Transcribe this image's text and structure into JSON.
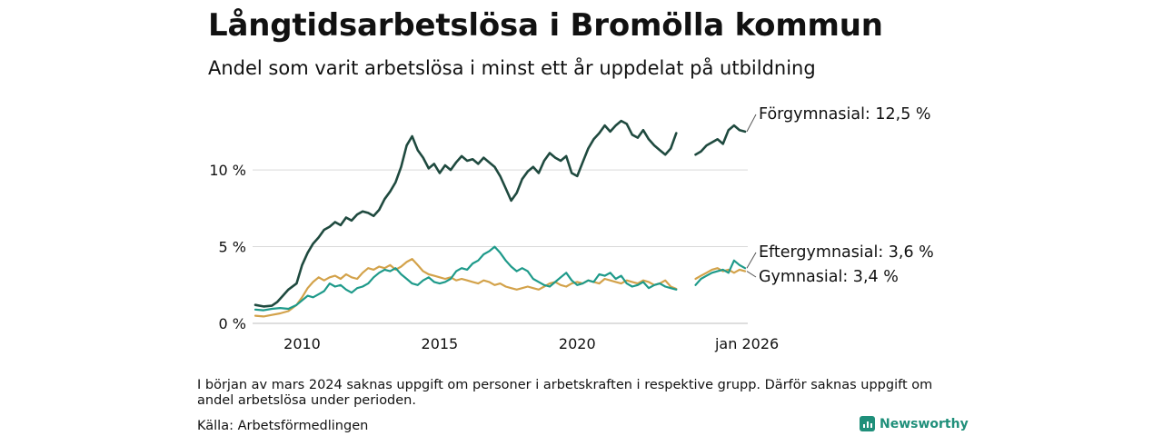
{
  "header": {
    "title": "Långtidsarbetslösa i Bromölla kommun",
    "subtitle": "Andel som varit arbetslösa i minst ett år uppdelat på utbildning"
  },
  "footer": {
    "note": "I början av mars 2024 saknas uppgift om personer i arbetskraften i respektive grupp. Därför saknas uppgift om andel arbetslösa under perioden.",
    "source": "Källa: Arbetsförmedlingen",
    "brand": "Newsworthy"
  },
  "colors": {
    "forgymnasial": "#1f4a3f",
    "eftergymnasial": "#1e9a8a",
    "gymnasial": "#d3a24a",
    "grid": "#d9d9d9",
    "brand": "#1f8f7a"
  },
  "chart_data": {
    "type": "line",
    "title": "Långtidsarbetslösa i Bromölla kommun",
    "subtitle": "Andel som varit arbetslösa i minst ett år uppdelat på utbildning",
    "xlabel": "",
    "ylabel": "",
    "xlim": [
      2008.2,
      2026.2
    ],
    "ylim": [
      0,
      13.5
    ],
    "yticks": [
      {
        "value": 0,
        "label": "0 %"
      },
      {
        "value": 5,
        "label": "5 %"
      },
      {
        "value": 10,
        "label": "10 %"
      }
    ],
    "xticks": [
      {
        "value": 2010,
        "label": "2010"
      },
      {
        "value": 2015,
        "label": "2015"
      },
      {
        "value": 2020,
        "label": "2020"
      },
      {
        "value": 2026.17,
        "label": "jan 2026"
      }
    ],
    "grid": true,
    "gap": [
      2023.8,
      2024.2
    ],
    "series": [
      {
        "name": "Förgymnasial",
        "label": "Förgymnasial: 12,5 %",
        "color_key": "forgymnasial",
        "points": [
          [
            2008.3,
            1.2
          ],
          [
            2008.6,
            1.1
          ],
          [
            2008.9,
            1.15
          ],
          [
            2009.1,
            1.4
          ],
          [
            2009.3,
            1.8
          ],
          [
            2009.5,
            2.2
          ],
          [
            2009.8,
            2.6
          ],
          [
            2010.0,
            3.8
          ],
          [
            2010.2,
            4.6
          ],
          [
            2010.4,
            5.2
          ],
          [
            2010.6,
            5.6
          ],
          [
            2010.8,
            6.1
          ],
          [
            2011.0,
            6.3
          ],
          [
            2011.2,
            6.6
          ],
          [
            2011.4,
            6.4
          ],
          [
            2011.6,
            6.9
          ],
          [
            2011.8,
            6.7
          ],
          [
            2012.0,
            7.1
          ],
          [
            2012.2,
            7.3
          ],
          [
            2012.4,
            7.2
          ],
          [
            2012.6,
            7.0
          ],
          [
            2012.8,
            7.4
          ],
          [
            2013.0,
            8.1
          ],
          [
            2013.2,
            8.6
          ],
          [
            2013.4,
            9.2
          ],
          [
            2013.6,
            10.2
          ],
          [
            2013.8,
            11.6
          ],
          [
            2014.0,
            12.2
          ],
          [
            2014.2,
            11.3
          ],
          [
            2014.4,
            10.8
          ],
          [
            2014.6,
            10.1
          ],
          [
            2014.8,
            10.4
          ],
          [
            2015.0,
            9.8
          ],
          [
            2015.2,
            10.3
          ],
          [
            2015.4,
            10.0
          ],
          [
            2015.6,
            10.5
          ],
          [
            2015.8,
            10.9
          ],
          [
            2016.0,
            10.6
          ],
          [
            2016.2,
            10.7
          ],
          [
            2016.4,
            10.4
          ],
          [
            2016.6,
            10.8
          ],
          [
            2016.8,
            10.5
          ],
          [
            2017.0,
            10.2
          ],
          [
            2017.2,
            9.6
          ],
          [
            2017.4,
            8.8
          ],
          [
            2017.6,
            8.0
          ],
          [
            2017.8,
            8.5
          ],
          [
            2018.0,
            9.4
          ],
          [
            2018.2,
            9.9
          ],
          [
            2018.4,
            10.2
          ],
          [
            2018.6,
            9.8
          ],
          [
            2018.8,
            10.6
          ],
          [
            2019.0,
            11.1
          ],
          [
            2019.2,
            10.8
          ],
          [
            2019.4,
            10.6
          ],
          [
            2019.6,
            10.9
          ],
          [
            2019.8,
            9.8
          ],
          [
            2020.0,
            9.6
          ],
          [
            2020.2,
            10.5
          ],
          [
            2020.4,
            11.4
          ],
          [
            2020.6,
            12.0
          ],
          [
            2020.8,
            12.4
          ],
          [
            2021.0,
            12.9
          ],
          [
            2021.2,
            12.5
          ],
          [
            2021.4,
            12.9
          ],
          [
            2021.6,
            13.2
          ],
          [
            2021.8,
            13.0
          ],
          [
            2022.0,
            12.3
          ],
          [
            2022.2,
            12.1
          ],
          [
            2022.4,
            12.6
          ],
          [
            2022.6,
            12.0
          ],
          [
            2022.8,
            11.6
          ],
          [
            2023.0,
            11.3
          ],
          [
            2023.2,
            11.0
          ],
          [
            2023.4,
            11.4
          ],
          [
            2023.6,
            12.4
          ],
          [
            2024.3,
            11.0
          ],
          [
            2024.5,
            11.2
          ],
          [
            2024.7,
            11.6
          ],
          [
            2024.9,
            11.8
          ],
          [
            2025.1,
            12.0
          ],
          [
            2025.3,
            11.7
          ],
          [
            2025.5,
            12.6
          ],
          [
            2025.7,
            12.9
          ],
          [
            2025.9,
            12.6
          ],
          [
            2026.1,
            12.5
          ]
        ]
      },
      {
        "name": "Eftergymnasial",
        "label": "Eftergymnasial:  3,6 %",
        "color_key": "eftergymnasial",
        "points": [
          [
            2008.3,
            0.9
          ],
          [
            2008.6,
            0.85
          ],
          [
            2008.9,
            0.95
          ],
          [
            2009.2,
            1.0
          ],
          [
            2009.5,
            0.95
          ],
          [
            2009.8,
            1.2
          ],
          [
            2010.0,
            1.5
          ],
          [
            2010.2,
            1.8
          ],
          [
            2010.4,
            1.7
          ],
          [
            2010.6,
            1.9
          ],
          [
            2010.8,
            2.1
          ],
          [
            2011.0,
            2.6
          ],
          [
            2011.2,
            2.4
          ],
          [
            2011.4,
            2.5
          ],
          [
            2011.6,
            2.2
          ],
          [
            2011.8,
            2.0
          ],
          [
            2012.0,
            2.3
          ],
          [
            2012.2,
            2.4
          ],
          [
            2012.4,
            2.6
          ],
          [
            2012.6,
            3.0
          ],
          [
            2012.8,
            3.3
          ],
          [
            2013.0,
            3.5
          ],
          [
            2013.2,
            3.4
          ],
          [
            2013.4,
            3.6
          ],
          [
            2013.6,
            3.2
          ],
          [
            2013.8,
            2.9
          ],
          [
            2014.0,
            2.6
          ],
          [
            2014.2,
            2.5
          ],
          [
            2014.4,
            2.8
          ],
          [
            2014.6,
            3.0
          ],
          [
            2014.8,
            2.7
          ],
          [
            2015.0,
            2.6
          ],
          [
            2015.2,
            2.7
          ],
          [
            2015.4,
            2.9
          ],
          [
            2015.6,
            3.4
          ],
          [
            2015.8,
            3.6
          ],
          [
            2016.0,
            3.5
          ],
          [
            2016.2,
            3.9
          ],
          [
            2016.4,
            4.1
          ],
          [
            2016.6,
            4.5
          ],
          [
            2016.8,
            4.7
          ],
          [
            2017.0,
            5.0
          ],
          [
            2017.2,
            4.6
          ],
          [
            2017.4,
            4.1
          ],
          [
            2017.6,
            3.7
          ],
          [
            2017.8,
            3.4
          ],
          [
            2018.0,
            3.6
          ],
          [
            2018.2,
            3.4
          ],
          [
            2018.4,
            2.9
          ],
          [
            2018.6,
            2.7
          ],
          [
            2018.8,
            2.5
          ],
          [
            2019.0,
            2.4
          ],
          [
            2019.2,
            2.7
          ],
          [
            2019.4,
            3.0
          ],
          [
            2019.6,
            3.3
          ],
          [
            2019.8,
            2.8
          ],
          [
            2020.0,
            2.5
          ],
          [
            2020.2,
            2.6
          ],
          [
            2020.4,
            2.8
          ],
          [
            2020.6,
            2.7
          ],
          [
            2020.8,
            3.2
          ],
          [
            2021.0,
            3.1
          ],
          [
            2021.2,
            3.3
          ],
          [
            2021.4,
            2.9
          ],
          [
            2021.6,
            3.1
          ],
          [
            2021.8,
            2.6
          ],
          [
            2022.0,
            2.4
          ],
          [
            2022.2,
            2.5
          ],
          [
            2022.4,
            2.7
          ],
          [
            2022.6,
            2.3
          ],
          [
            2022.8,
            2.5
          ],
          [
            2023.0,
            2.6
          ],
          [
            2023.2,
            2.4
          ],
          [
            2023.4,
            2.3
          ],
          [
            2023.6,
            2.2
          ],
          [
            2024.3,
            2.5
          ],
          [
            2024.5,
            2.9
          ],
          [
            2024.7,
            3.1
          ],
          [
            2024.9,
            3.3
          ],
          [
            2025.1,
            3.4
          ],
          [
            2025.3,
            3.5
          ],
          [
            2025.5,
            3.3
          ],
          [
            2025.7,
            4.1
          ],
          [
            2025.9,
            3.8
          ],
          [
            2026.1,
            3.6
          ]
        ]
      },
      {
        "name": "Gymnasial",
        "label": "Gymnasial:  3,4 %",
        "color_key": "gymnasial",
        "points": [
          [
            2008.3,
            0.5
          ],
          [
            2008.6,
            0.45
          ],
          [
            2008.9,
            0.55
          ],
          [
            2009.2,
            0.65
          ],
          [
            2009.5,
            0.8
          ],
          [
            2009.8,
            1.2
          ],
          [
            2010.0,
            1.7
          ],
          [
            2010.2,
            2.3
          ],
          [
            2010.4,
            2.7
          ],
          [
            2010.6,
            3.0
          ],
          [
            2010.8,
            2.8
          ],
          [
            2011.0,
            3.0
          ],
          [
            2011.2,
            3.1
          ],
          [
            2011.4,
            2.9
          ],
          [
            2011.6,
            3.2
          ],
          [
            2011.8,
            3.0
          ],
          [
            2012.0,
            2.9
          ],
          [
            2012.2,
            3.3
          ],
          [
            2012.4,
            3.6
          ],
          [
            2012.6,
            3.5
          ],
          [
            2012.8,
            3.7
          ],
          [
            2013.0,
            3.6
          ],
          [
            2013.2,
            3.8
          ],
          [
            2013.4,
            3.5
          ],
          [
            2013.6,
            3.7
          ],
          [
            2013.8,
            4.0
          ],
          [
            2014.0,
            4.2
          ],
          [
            2014.2,
            3.8
          ],
          [
            2014.4,
            3.4
          ],
          [
            2014.6,
            3.2
          ],
          [
            2014.8,
            3.1
          ],
          [
            2015.0,
            3.0
          ],
          [
            2015.2,
            2.9
          ],
          [
            2015.4,
            3.0
          ],
          [
            2015.6,
            2.8
          ],
          [
            2015.8,
            2.9
          ],
          [
            2016.0,
            2.8
          ],
          [
            2016.2,
            2.7
          ],
          [
            2016.4,
            2.6
          ],
          [
            2016.6,
            2.8
          ],
          [
            2016.8,
            2.7
          ],
          [
            2017.0,
            2.5
          ],
          [
            2017.2,
            2.6
          ],
          [
            2017.4,
            2.4
          ],
          [
            2017.6,
            2.3
          ],
          [
            2017.8,
            2.2
          ],
          [
            2018.0,
            2.3
          ],
          [
            2018.2,
            2.4
          ],
          [
            2018.4,
            2.3
          ],
          [
            2018.6,
            2.2
          ],
          [
            2018.8,
            2.4
          ],
          [
            2019.0,
            2.6
          ],
          [
            2019.2,
            2.7
          ],
          [
            2019.4,
            2.5
          ],
          [
            2019.6,
            2.4
          ],
          [
            2019.8,
            2.6
          ],
          [
            2020.0,
            2.7
          ],
          [
            2020.2,
            2.6
          ],
          [
            2020.4,
            2.8
          ],
          [
            2020.6,
            2.7
          ],
          [
            2020.8,
            2.6
          ],
          [
            2021.0,
            2.9
          ],
          [
            2021.2,
            2.8
          ],
          [
            2021.4,
            2.7
          ],
          [
            2021.6,
            2.6
          ],
          [
            2021.8,
            2.8
          ],
          [
            2022.0,
            2.7
          ],
          [
            2022.2,
            2.6
          ],
          [
            2022.4,
            2.8
          ],
          [
            2022.6,
            2.7
          ],
          [
            2022.8,
            2.5
          ],
          [
            2023.0,
            2.6
          ],
          [
            2023.2,
            2.8
          ],
          [
            2023.4,
            2.4
          ],
          [
            2023.6,
            2.25
          ],
          [
            2024.3,
            2.9
          ],
          [
            2024.5,
            3.1
          ],
          [
            2024.7,
            3.3
          ],
          [
            2024.9,
            3.5
          ],
          [
            2025.1,
            3.6
          ],
          [
            2025.3,
            3.4
          ],
          [
            2025.5,
            3.5
          ],
          [
            2025.7,
            3.3
          ],
          [
            2025.9,
            3.5
          ],
          [
            2026.1,
            3.4
          ]
        ]
      }
    ]
  }
}
